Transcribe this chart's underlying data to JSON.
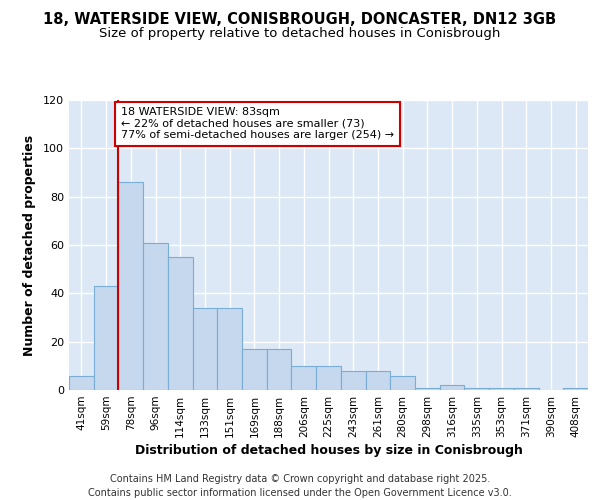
{
  "title_line1": "18, WATERSIDE VIEW, CONISBROUGH, DONCASTER, DN12 3GB",
  "title_line2": "Size of property relative to detached houses in Conisbrough",
  "xlabel": "Distribution of detached houses by size in Conisbrough",
  "ylabel": "Number of detached properties",
  "categories": [
    "41sqm",
    "59sqm",
    "78sqm",
    "96sqm",
    "114sqm",
    "133sqm",
    "151sqm",
    "169sqm",
    "188sqm",
    "206sqm",
    "225sqm",
    "243sqm",
    "261sqm",
    "280sqm",
    "298sqm",
    "316sqm",
    "335sqm",
    "353sqm",
    "371sqm",
    "390sqm",
    "408sqm"
  ],
  "values": [
    6,
    43,
    86,
    61,
    55,
    34,
    34,
    17,
    17,
    10,
    10,
    8,
    8,
    6,
    1,
    2,
    1,
    1,
    1,
    0,
    1
  ],
  "bar_color": "#c5d8ee",
  "bar_edge_color": "#7aadd4",
  "red_line_x": 2,
  "red_line_color": "#cc0000",
  "annotation_text": "18 WATERSIDE VIEW: 83sqm\n← 22% of detached houses are smaller (73)\n77% of semi-detached houses are larger (254) →",
  "annotation_box_edgecolor": "#cc0000",
  "ylim": [
    0,
    120
  ],
  "yticks": [
    0,
    20,
    40,
    60,
    80,
    100,
    120
  ],
  "ax_bg_color": "#dce8f5",
  "grid_color": "#ffffff",
  "fig_bg_color": "#ffffff",
  "footer_line1": "Contains HM Land Registry data © Crown copyright and database right 2025.",
  "footer_line2": "Contains public sector information licensed under the Open Government Licence v3.0.",
  "title_fontsize": 10.5,
  "subtitle_fontsize": 9.5,
  "axis_label_fontsize": 9,
  "tick_fontsize": 7.5,
  "annotation_fontsize": 8,
  "footer_fontsize": 7
}
